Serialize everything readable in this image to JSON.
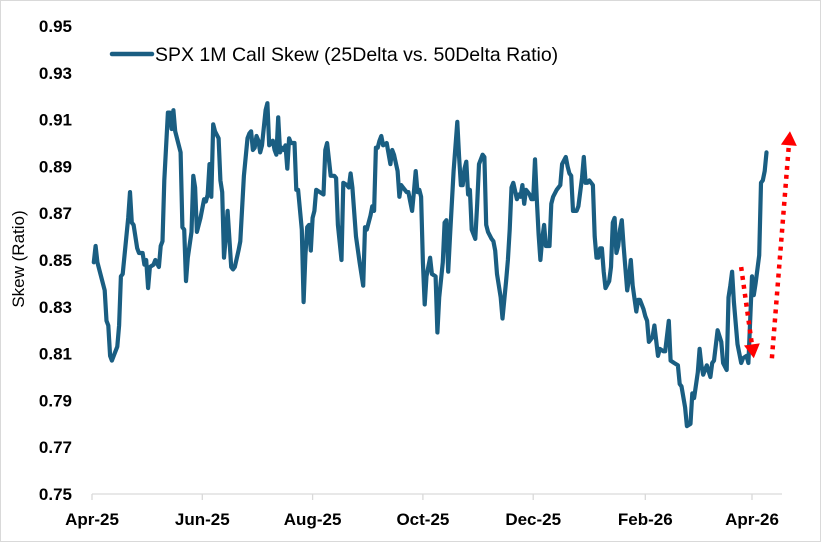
{
  "chart_data": {
    "type": "line",
    "title": "",
    "xlabel": "",
    "ylabel": "Skew (Ratio)",
    "ylim": [
      0.75,
      0.95
    ],
    "yticks": [
      "0.75",
      "0.77",
      "0.79",
      "0.81",
      "0.83",
      "0.85",
      "0.87",
      "0.89",
      "0.91",
      "0.93",
      "0.95"
    ],
    "x_unit": "days since Apr-1-2025",
    "xlim": [
      0,
      383
    ],
    "xticks": [
      {
        "label": "Apr-25",
        "day": 0
      },
      {
        "label": "Jun-25",
        "day": 61
      },
      {
        "label": "Aug-25",
        "day": 122
      },
      {
        "label": "Oct-25",
        "day": 183
      },
      {
        "label": "Dec-25",
        "day": 244
      },
      {
        "label": "Feb-26",
        "day": 306
      },
      {
        "label": "Apr-26",
        "day": 365
      }
    ],
    "grid": false,
    "legend": {
      "position": "top-left",
      "entries": [
        "SPX 1M Call Skew (25Delta vs. 50Delta Ratio)"
      ]
    },
    "series": [
      {
        "name": "SPX 1M Call Skew (25Delta vs. 50Delta Ratio)",
        "color": "#1a5e82",
        "points": [
          [
            1,
            0.849
          ],
          [
            2,
            0.856
          ],
          [
            3,
            0.849
          ],
          [
            7,
            0.837
          ],
          [
            8,
            0.824
          ],
          [
            9,
            0.822
          ],
          [
            10,
            0.809
          ],
          [
            11,
            0.807
          ],
          [
            12,
            0.809
          ],
          [
            14,
            0.813
          ],
          [
            15,
            0.822
          ],
          [
            16,
            0.843
          ],
          [
            17,
            0.844
          ],
          [
            20,
            0.868
          ],
          [
            21,
            0.879
          ],
          [
            22,
            0.866
          ],
          [
            23,
            0.865
          ],
          [
            25,
            0.855
          ],
          [
            26,
            0.853
          ],
          [
            28,
            0.853
          ],
          [
            29,
            0.848
          ],
          [
            30,
            0.85
          ],
          [
            31,
            0.838
          ],
          [
            32,
            0.847
          ],
          [
            34,
            0.848
          ],
          [
            35,
            0.85
          ],
          [
            37,
            0.847
          ],
          [
            38,
            0.856
          ],
          [
            39,
            0.858
          ],
          [
            40,
            0.884
          ],
          [
            42,
            0.913
          ],
          [
            43,
            0.913
          ],
          [
            44,
            0.906
          ],
          [
            45,
            0.914
          ],
          [
            46,
            0.905
          ],
          [
            49,
            0.896
          ],
          [
            50,
            0.864
          ],
          [
            51,
            0.863
          ],
          [
            52,
            0.841
          ],
          [
            53,
            0.851
          ],
          [
            55,
            0.862
          ],
          [
            56,
            0.886
          ],
          [
            57,
            0.881
          ],
          [
            58,
            0.862
          ],
          [
            60,
            0.868
          ],
          [
            62,
            0.876
          ],
          [
            63,
            0.875
          ],
          [
            64,
            0.878
          ],
          [
            65,
            0.891
          ],
          [
            66,
            0.877
          ],
          [
            67,
            0.908
          ],
          [
            68,
            0.905
          ],
          [
            70,
            0.902
          ],
          [
            71,
            0.884
          ],
          [
            72,
            0.879
          ],
          [
            73,
            0.851
          ],
          [
            74,
            0.86
          ],
          [
            75,
            0.871
          ],
          [
            77,
            0.847
          ],
          [
            78,
            0.846
          ],
          [
            79,
            0.847
          ],
          [
            81,
            0.854
          ],
          [
            82,
            0.858
          ],
          [
            84,
            0.886
          ],
          [
            86,
            0.902
          ],
          [
            87,
            0.904
          ],
          [
            88,
            0.905
          ],
          [
            89,
            0.897
          ],
          [
            90,
            0.898
          ],
          [
            91,
            0.903
          ],
          [
            92,
            0.901
          ],
          [
            93,
            0.896
          ],
          [
            94,
            0.899
          ],
          [
            96,
            0.914
          ],
          [
            97,
            0.917
          ],
          [
            98,
            0.899
          ],
          [
            100,
            0.901
          ],
          [
            101,
            0.897
          ],
          [
            102,
            0.895
          ],
          [
            103,
            0.911
          ],
          [
            104,
            0.896
          ],
          [
            105,
            0.898
          ],
          [
            106,
            0.897
          ],
          [
            107,
            0.899
          ],
          [
            108,
            0.889
          ],
          [
            109,
            0.902
          ],
          [
            110,
            0.9
          ],
          [
            112,
            0.9
          ],
          [
            113,
            0.88
          ],
          [
            114,
            0.88
          ],
          [
            116,
            0.863
          ],
          [
            117,
            0.832
          ],
          [
            118,
            0.852
          ],
          [
            119,
            0.864
          ],
          [
            120,
            0.865
          ],
          [
            121,
            0.854
          ],
          [
            122,
            0.868
          ],
          [
            123,
            0.871
          ],
          [
            124,
            0.88
          ],
          [
            126,
            0.879
          ],
          [
            128,
            0.878
          ],
          [
            129,
            0.897
          ],
          [
            130,
            0.9
          ],
          [
            131,
            0.893
          ],
          [
            132,
            0.886
          ],
          [
            134,
            0.886
          ],
          [
            135,
            0.885
          ],
          [
            136,
            0.865
          ],
          [
            138,
            0.85
          ],
          [
            139,
            0.883
          ],
          [
            141,
            0.882
          ],
          [
            142,
            0.881
          ],
          [
            143,
            0.887
          ],
          [
            144,
            0.881
          ],
          [
            146,
            0.86
          ],
          [
            148,
            0.849
          ],
          [
            150,
            0.839
          ],
          [
            151,
            0.864
          ],
          [
            152,
            0.863
          ],
          [
            154,
            0.869
          ],
          [
            155,
            0.873
          ],
          [
            156,
            0.871
          ],
          [
            157,
            0.898
          ],
          [
            158,
            0.898
          ],
          [
            159,
            0.901
          ],
          [
            160,
            0.903
          ],
          [
            161,
            0.899
          ],
          [
            163,
            0.9
          ],
          [
            165,
            0.891
          ],
          [
            166,
            0.897
          ],
          [
            167,
            0.895
          ],
          [
            169,
            0.888
          ],
          [
            170,
            0.877
          ],
          [
            171,
            0.882
          ],
          [
            172,
            0.881
          ],
          [
            174,
            0.879
          ],
          [
            175,
            0.879
          ],
          [
            176,
            0.875
          ],
          [
            177,
            0.871
          ],
          [
            178,
            0.879
          ],
          [
            179,
            0.888
          ],
          [
            180,
            0.879
          ],
          [
            181,
            0.88
          ],
          [
            182,
            0.877
          ],
          [
            183,
            0.849
          ],
          [
            184,
            0.831
          ],
          [
            185,
            0.843
          ],
          [
            187,
            0.851
          ],
          [
            188,
            0.844
          ],
          [
            190,
            0.843
          ],
          [
            191,
            0.819
          ],
          [
            192,
            0.834
          ],
          [
            194,
            0.849
          ],
          [
            195,
            0.866
          ],
          [
            196,
            0.867
          ],
          [
            197,
            0.845
          ],
          [
            198,
            0.86
          ],
          [
            200,
            0.888
          ],
          [
            202,
            0.909
          ],
          [
            203,
            0.894
          ],
          [
            204,
            0.882
          ],
          [
            205,
            0.882
          ],
          [
            206,
            0.889
          ],
          [
            207,
            0.892
          ],
          [
            208,
            0.878
          ],
          [
            209,
            0.88
          ],
          [
            210,
            0.863
          ],
          [
            212,
            0.859
          ],
          [
            213,
            0.874
          ],
          [
            214,
            0.891
          ],
          [
            216,
            0.895
          ],
          [
            217,
            0.894
          ],
          [
            218,
            0.865
          ],
          [
            219,
            0.862
          ],
          [
            221,
            0.859
          ],
          [
            222,
            0.858
          ],
          [
            223,
            0.854
          ],
          [
            224,
            0.844
          ],
          [
            226,
            0.834
          ],
          [
            227,
            0.825
          ],
          [
            228,
            0.833
          ],
          [
            229,
            0.841
          ],
          [
            230,
            0.85
          ],
          [
            231,
            0.863
          ],
          [
            232,
            0.881
          ],
          [
            233,
            0.883
          ],
          [
            235,
            0.876
          ],
          [
            236,
            0.878
          ],
          [
            237,
            0.877
          ],
          [
            238,
            0.882
          ],
          [
            239,
            0.874
          ],
          [
            240,
            0.88
          ],
          [
            241,
            0.879
          ],
          [
            242,
            0.878
          ],
          [
            243,
            0.876
          ],
          [
            244,
            0.876
          ],
          [
            245,
            0.893
          ],
          [
            246,
            0.876
          ],
          [
            247,
            0.861
          ],
          [
            248,
            0.85
          ],
          [
            249,
            0.859
          ],
          [
            250,
            0.865
          ],
          [
            251,
            0.856
          ],
          [
            253,
            0.856
          ],
          [
            254,
            0.874
          ],
          [
            255,
            0.877
          ],
          [
            257,
            0.88
          ],
          [
            259,
            0.882
          ],
          [
            260,
            0.891
          ],
          [
            262,
            0.894
          ],
          [
            263,
            0.89
          ],
          [
            264,
            0.887
          ],
          [
            265,
            0.886
          ],
          [
            266,
            0.871
          ],
          [
            268,
            0.871
          ],
          [
            269,
            0.873
          ],
          [
            271,
            0.885
          ],
          [
            272,
            0.894
          ],
          [
            273,
            0.883
          ],
          [
            274,
            0.883
          ],
          [
            275,
            0.884
          ],
          [
            277,
            0.882
          ],
          [
            278,
            0.86
          ],
          [
            279,
            0.851
          ],
          [
            280,
            0.851
          ],
          [
            281,
            0.855
          ],
          [
            282,
            0.855
          ],
          [
            283,
            0.845
          ],
          [
            284,
            0.838
          ],
          [
            286,
            0.841
          ],
          [
            287,
            0.847
          ],
          [
            288,
            0.866
          ],
          [
            289,
            0.868
          ],
          [
            290,
            0.853
          ],
          [
            291,
            0.856
          ],
          [
            292,
            0.863
          ],
          [
            293,
            0.867
          ],
          [
            294,
            0.856
          ],
          [
            296,
            0.837
          ],
          [
            297,
            0.842
          ],
          [
            298,
            0.85
          ],
          [
            299,
            0.839
          ],
          [
            301,
            0.828
          ],
          [
            302,
            0.833
          ],
          [
            303,
            0.833
          ],
          [
            305,
            0.829
          ],
          [
            306,
            0.826
          ],
          [
            307,
            0.824
          ],
          [
            308,
            0.815
          ],
          [
            310,
            0.817
          ],
          [
            311,
            0.822
          ],
          [
            313,
            0.809
          ],
          [
            314,
            0.812
          ],
          [
            316,
            0.811
          ],
          [
            317,
            0.811
          ],
          [
            319,
            0.824
          ],
          [
            320,
            0.807
          ],
          [
            322,
            0.806
          ],
          [
            324,
            0.805
          ],
          [
            325,
            0.797
          ],
          [
            326,
            0.796
          ],
          [
            328,
            0.787
          ],
          [
            329,
            0.779
          ],
          [
            331,
            0.78
          ],
          [
            332,
            0.793
          ],
          [
            333,
            0.791
          ],
          [
            335,
            0.802
          ],
          [
            336,
            0.812
          ],
          [
            337,
            0.805
          ],
          [
            338,
            0.801
          ],
          [
            340,
            0.805
          ],
          [
            342,
            0.8
          ],
          [
            343,
            0.806
          ],
          [
            344,
            0.807
          ],
          [
            346,
            0.82
          ],
          [
            348,
            0.815
          ],
          [
            349,
            0.806
          ],
          [
            351,
            0.803
          ],
          [
            352,
            0.834
          ],
          [
            353,
            0.839
          ],
          [
            354,
            0.845
          ],
          [
            355,
            0.832
          ],
          [
            357,
            0.814
          ],
          [
            359,
            0.806
          ],
          [
            360,
            0.808
          ],
          [
            362,
            0.809
          ],
          [
            363,
            0.806
          ],
          [
            365,
            0.843
          ],
          [
            366,
            0.835
          ],
          [
            367,
            0.84
          ],
          [
            369,
            0.852
          ],
          [
            370,
            0.883
          ],
          [
            371,
            0.884
          ],
          [
            372,
            0.888
          ],
          [
            373,
            0.896
          ]
        ]
      }
    ],
    "annotations": [
      {
        "type": "arrow",
        "style": "dotted",
        "color": "#ff0000",
        "direction": "down",
        "from": [
          359,
          0.847
        ],
        "to": [
          366,
          0.808
        ]
      },
      {
        "type": "arrow",
        "style": "dotted",
        "color": "#ff0000",
        "direction": "up",
        "from": [
          376,
          0.808
        ],
        "to": [
          386,
          0.905
        ]
      }
    ]
  }
}
